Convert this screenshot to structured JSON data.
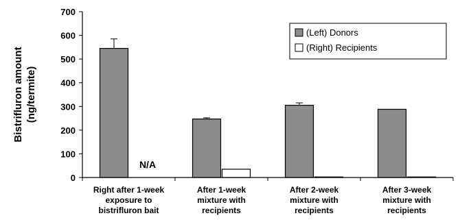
{
  "chart_data": {
    "type": "bar",
    "title": "",
    "ylabel_lines": [
      "Bistrifluron amount",
      "(ng/termite)"
    ],
    "xlabel": "",
    "ylim": [
      0,
      700
    ],
    "yticks": [
      0,
      100,
      200,
      300,
      400,
      500,
      600,
      700
    ],
    "grid": false,
    "legend_position": "top-right",
    "categories": [
      [
        "Right after 1-week",
        "exposure to",
        "bistrifluron bait"
      ],
      [
        "After 1-week",
        "mixture with",
        "recipients"
      ],
      [
        "After 2-week",
        "mixture with",
        "recipients"
      ],
      [
        "After 3-week",
        "mixture with",
        "recipients"
      ]
    ],
    "series": [
      {
        "name": "(Left) Donors",
        "color": "#8c8c8c",
        "values": [
          545,
          247,
          305,
          288
        ],
        "errors": [
          40,
          5,
          10,
          0
        ]
      },
      {
        "name": "(Right) Recipients",
        "color": "#ffffff",
        "values": [
          null,
          35,
          2,
          2
        ],
        "errors": [
          0,
          0,
          0,
          0
        ]
      }
    ],
    "annotations": [
      {
        "text": "N/A",
        "category_index": 0,
        "series_index": 1
      }
    ]
  }
}
